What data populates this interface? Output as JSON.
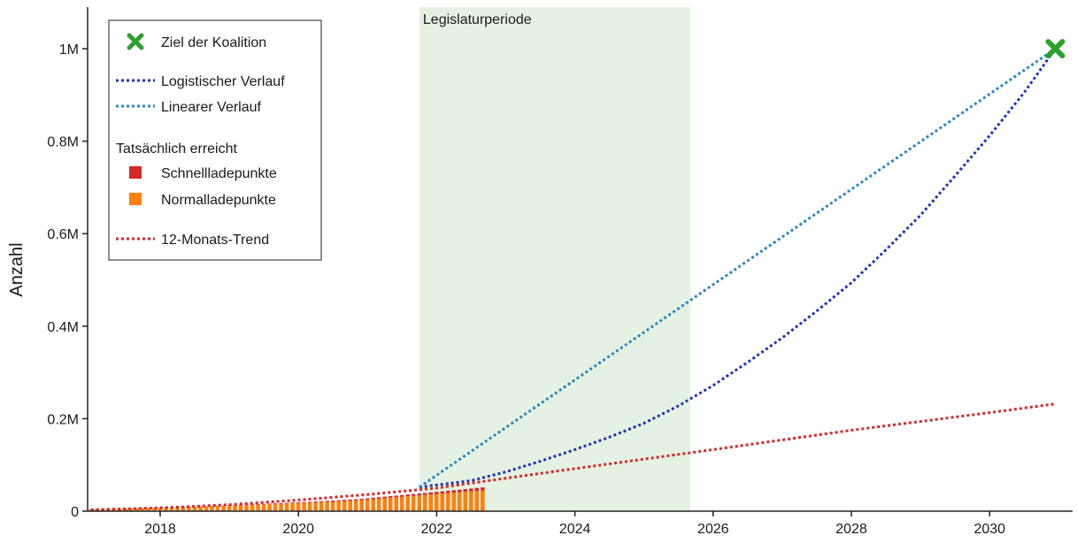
{
  "chart_data": {
    "type": "bar",
    "title": "",
    "xlabel": "",
    "ylabel": "Anzahl",
    "xlim": [
      2016.95,
      2031.2
    ],
    "ylim": [
      0,
      1090000
    ],
    "grid": false,
    "legend_position": "top-left",
    "x_ticks": [
      2018,
      2020,
      2022,
      2024,
      2026,
      2028,
      2030
    ],
    "x_tick_labels": [
      "2018",
      "2020",
      "2022",
      "2024",
      "2026",
      "2028",
      "2030"
    ],
    "y_ticks": [
      0,
      200000,
      400000,
      600000,
      800000,
      1000000
    ],
    "y_tick_labels": [
      "0",
      "0.2M",
      "0.4M",
      "0.6M",
      "0.8M",
      "1M"
    ],
    "shaded_region": {
      "label": "Legislaturperiode",
      "x_start": 2021.75,
      "x_end": 2025.67,
      "color": "#e5f2e3"
    },
    "target_point": {
      "name": "Ziel der Koalition",
      "x": 2030.95,
      "y": 1000000,
      "color": "#2ca02c"
    },
    "bars": {
      "x_start": 2017.0,
      "x_step": 0.0833,
      "normal_name": "Normalladepunkte",
      "fast_name": "Schnellladepunkte",
      "normal_color": "#ff7f0e",
      "fast_color": "#d62728",
      "normal_values": [
        4000,
        4200,
        4400,
        4600,
        4800,
        5000,
        5200,
        5500,
        5800,
        6100,
        6400,
        6700,
        7000,
        7300,
        7600,
        8000,
        8400,
        8800,
        9200,
        9600,
        10000,
        10400,
        10800,
        11200,
        11600,
        12000,
        12500,
        13000,
        13500,
        14000,
        14500,
        15000,
        15500,
        16000,
        16500,
        17000,
        17500,
        18000,
        18500,
        19000,
        19600,
        20200,
        20800,
        21400,
        22000,
        22600,
        23200,
        24000,
        25000,
        26000,
        27000,
        28000,
        29000,
        30000,
        31000,
        32000,
        33000,
        34000,
        35000,
        36000,
        37000,
        38000,
        39000,
        40000,
        41000,
        42000,
        43000,
        44000,
        45000
      ],
      "fast_values": [
        300,
        320,
        340,
        360,
        380,
        400,
        420,
        440,
        460,
        480,
        500,
        520,
        550,
        580,
        610,
        640,
        670,
        700,
        730,
        760,
        800,
        840,
        880,
        920,
        960,
        1000,
        1050,
        1100,
        1150,
        1200,
        1250,
        1300,
        1380,
        1460,
        1540,
        1620,
        1700,
        1780,
        1860,
        1940,
        2040,
        2140,
        2240,
        2340,
        2440,
        2540,
        2640,
        2760,
        2880,
        3000,
        3150,
        3300,
        3450,
        3600,
        3750,
        3900,
        4050,
        4200,
        4350,
        4500,
        4700,
        4900,
        5100,
        5300,
        5500,
        5700,
        5900,
        6100,
        6300
      ]
    },
    "series": [
      {
        "name": "Logistischer Verlauf",
        "style": "dotted",
        "color": "#2233bb",
        "x": [
          2021.75,
          2022.5,
          2023,
          2023.5,
          2024,
          2024.5,
          2025,
          2025.5,
          2026,
          2026.5,
          2027,
          2027.5,
          2028,
          2028.5,
          2029,
          2029.5,
          2030,
          2030.5,
          2030.95
        ],
        "y": [
          52000,
          66000,
          85000,
          108000,
          133000,
          160000,
          190000,
          228000,
          272000,
          322000,
          375000,
          433000,
          494000,
          565000,
          640000,
          725000,
          812000,
          905000,
          1000000
        ]
      },
      {
        "name": "Linearer Verlauf",
        "style": "dotted",
        "color": "#2a88c0",
        "x": [
          2021.75,
          2030.95
        ],
        "y": [
          52000,
          1000000
        ]
      },
      {
        "name": "12-Monats-Trend",
        "style": "dotted",
        "color": "#d62728",
        "x": [
          2017.0,
          2018,
          2019,
          2020,
          2021,
          2022,
          2022.75,
          2024,
          2026,
          2028,
          2030,
          2030.95
        ],
        "y": [
          3000,
          7000,
          14000,
          24000,
          36000,
          50000,
          66000,
          92000,
          133000,
          175000,
          213000,
          232000
        ]
      }
    ],
    "legend": {
      "target_label": "Ziel der Koalition",
      "logistic_label": "Logistischer Verlauf",
      "linear_label": "Linearer Verlauf",
      "section_title": "Tatsächlich erreicht",
      "fast_label": "Schnellladepunkte",
      "normal_label": "Normalladepunkte",
      "trend_label": "12-Monats-Trend"
    }
  }
}
